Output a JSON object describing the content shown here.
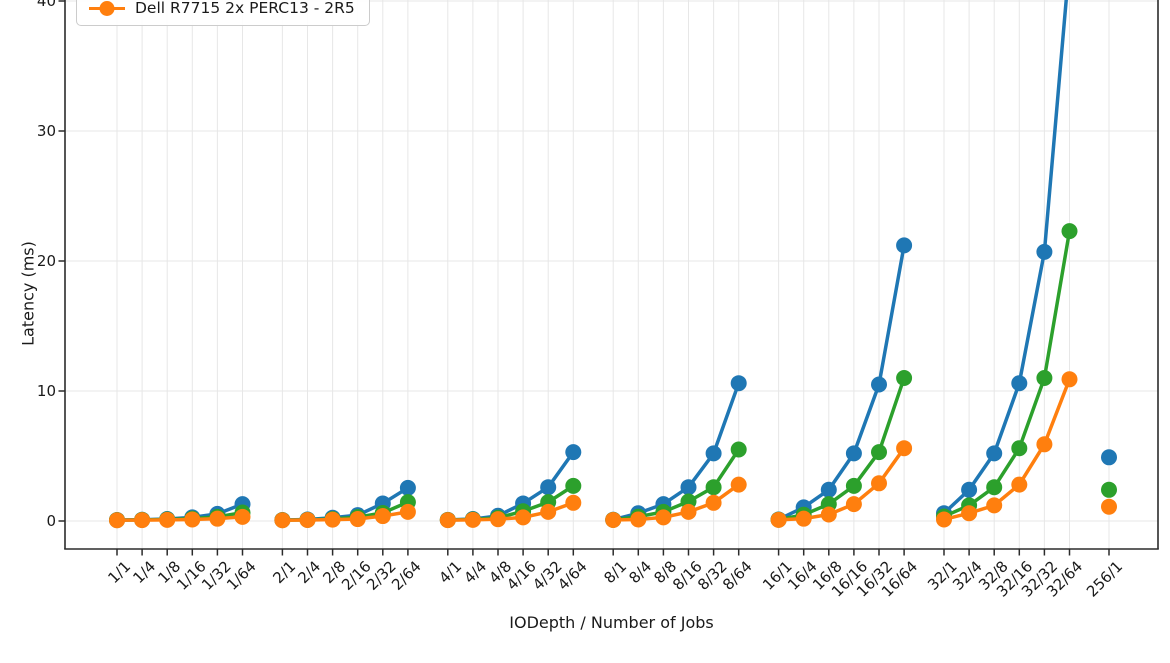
{
  "chart_data": {
    "type": "line",
    "title": "",
    "xlabel": "IODepth / Number of Jobs",
    "ylabel": "Latency (ms)",
    "yticks": [
      0,
      10,
      20,
      30,
      40
    ],
    "ylim_visible": [
      0,
      40
    ],
    "grid": true,
    "legend_position": "upper left (box clipped at top of image; only last entry visible)",
    "x_group_size": 6,
    "categories": [
      "1/1",
      "1/4",
      "1/8",
      "1/16",
      "1/32",
      "1/64",
      "2/1",
      "2/4",
      "2/8",
      "2/16",
      "2/32",
      "2/64",
      "4/1",
      "4/4",
      "4/8",
      "4/16",
      "4/32",
      "4/64",
      "8/1",
      "8/4",
      "8/8",
      "8/16",
      "8/32",
      "8/64",
      "16/1",
      "16/4",
      "16/8",
      "16/16",
      "16/32",
      "16/64",
      "32/1",
      "32/4",
      "32/8",
      "32/16",
      "32/32",
      "32/64",
      "256/1"
    ],
    "series": [
      {
        "name": "",
        "legend_visible": false,
        "color": "#1f77b4",
        "values": [
          0.08,
          0.1,
          0.15,
          0.28,
          0.55,
          1.3,
          0.08,
          0.12,
          0.25,
          0.45,
          1.35,
          2.55,
          0.09,
          0.15,
          0.4,
          1.35,
          2.6,
          5.3,
          0.1,
          0.6,
          1.3,
          2.6,
          5.2,
          10.6,
          0.12,
          1.05,
          2.4,
          5.2,
          10.5,
          21.2,
          0.6,
          2.4,
          5.2,
          10.6,
          20.7,
          43.0,
          4.9
        ]
      },
      {
        "name": "",
        "legend_visible": false,
        "color": "#2ca02c",
        "values": [
          0.07,
          0.09,
          0.12,
          0.18,
          0.32,
          0.65,
          0.07,
          0.09,
          0.15,
          0.3,
          0.62,
          1.45,
          0.08,
          0.12,
          0.25,
          0.75,
          1.45,
          2.7,
          0.09,
          0.33,
          0.7,
          1.5,
          2.6,
          5.5,
          0.1,
          0.48,
          1.3,
          2.7,
          5.3,
          11.0,
          0.35,
          1.2,
          2.6,
          5.6,
          11.0,
          22.3,
          2.4
        ]
      },
      {
        "name": "Dell R7715 2x PERC13 - 2R5",
        "legend_visible": true,
        "color": "#ff7f0e",
        "values": [
          0.06,
          0.07,
          0.09,
          0.12,
          0.18,
          0.32,
          0.06,
          0.08,
          0.11,
          0.15,
          0.38,
          0.7,
          0.07,
          0.09,
          0.14,
          0.28,
          0.7,
          1.4,
          0.08,
          0.12,
          0.28,
          0.7,
          1.4,
          2.8,
          0.09,
          0.18,
          0.5,
          1.3,
          2.9,
          5.6,
          0.12,
          0.6,
          1.2,
          2.8,
          5.9,
          10.9,
          1.1
        ]
      }
    ],
    "notes": "Each x-group of 6 points is a separate line segment; 256/1 points are isolated markers. Blue series at 32/64 exceeds the visible y-range (line exits chart top)."
  },
  "colors": {
    "grid": "#e7e7e7",
    "spine": "#2b2b2b",
    "text": "#1a1a1a",
    "background": "#ffffff"
  }
}
